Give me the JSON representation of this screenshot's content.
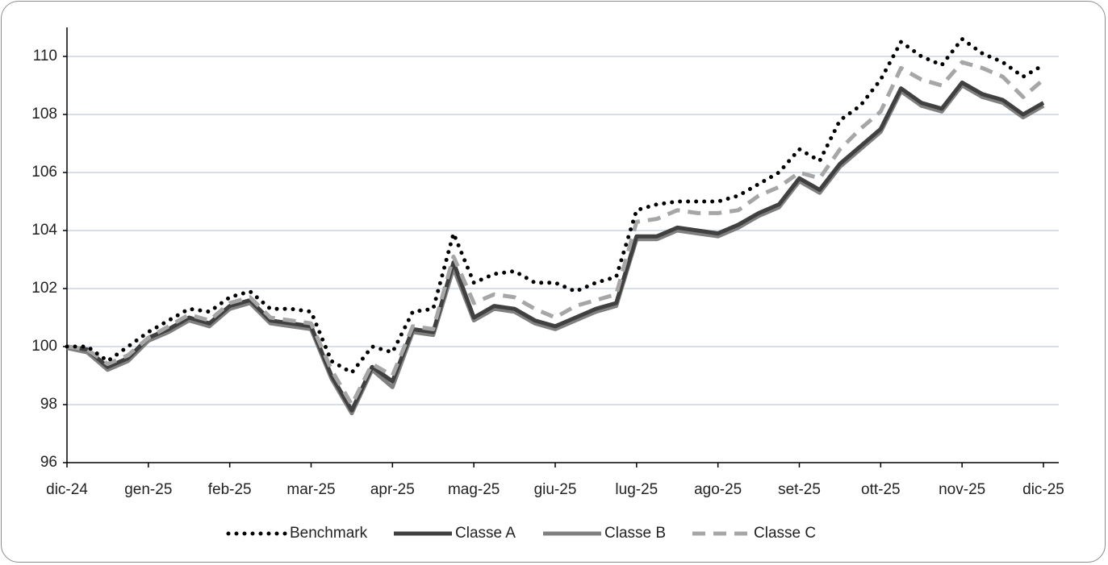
{
  "chart_data": {
    "type": "line",
    "categories": [
      "dic-24",
      null,
      null,
      null,
      "gen-25",
      null,
      null,
      null,
      "feb-25",
      null,
      null,
      null,
      "mar-25",
      null,
      null,
      null,
      "apr-25",
      null,
      null,
      null,
      "mag-25",
      null,
      null,
      null,
      "giu-25",
      null,
      null,
      null,
      "lug-25",
      null,
      null,
      null,
      "ago-25",
      null,
      null,
      null,
      "set-25",
      null,
      null,
      null,
      "ott-25",
      null,
      null,
      null,
      "nov-25",
      null,
      null,
      null,
      "dic-25"
    ],
    "series": [
      {
        "name": "Benchmark",
        "color": "#000000",
        "style": "dotted",
        "values": [
          100.0,
          100.0,
          99.5,
          100.0,
          100.5,
          100.9,
          101.3,
          101.2,
          101.7,
          101.9,
          101.3,
          101.3,
          101.2,
          99.5,
          99.1,
          100.0,
          99.8,
          101.2,
          101.3,
          103.9,
          102.2,
          102.5,
          102.6,
          102.2,
          102.2,
          101.9,
          102.2,
          102.4,
          104.7,
          104.9,
          105.0,
          105.0,
          105.0,
          105.2,
          105.6,
          106.0,
          106.8,
          106.4,
          107.8,
          108.3,
          109.2,
          110.5,
          110.0,
          109.7,
          110.6,
          110.1,
          109.8,
          109.3,
          109.7
        ]
      },
      {
        "name": "Classe A",
        "color": "#404040",
        "style": "solid",
        "values": [
          100.0,
          99.9,
          99.3,
          99.6,
          100.3,
          100.6,
          101.0,
          100.8,
          101.4,
          101.6,
          100.9,
          100.8,
          100.7,
          99.0,
          97.8,
          99.3,
          98.8,
          100.6,
          100.5,
          102.9,
          101.0,
          101.4,
          101.3,
          100.9,
          100.7,
          101.0,
          101.3,
          101.5,
          103.8,
          103.8,
          104.1,
          104.0,
          103.9,
          104.2,
          104.6,
          104.9,
          105.8,
          105.4,
          106.3,
          106.9,
          107.5,
          108.9,
          108.4,
          108.2,
          109.1,
          108.7,
          108.5,
          108.0,
          108.4
        ]
      },
      {
        "name": "Classe B",
        "color": "#808080",
        "style": "solid",
        "values": [
          99.95,
          99.8,
          99.2,
          99.5,
          100.2,
          100.5,
          100.9,
          100.7,
          101.3,
          101.5,
          100.8,
          100.7,
          100.6,
          98.9,
          97.7,
          99.2,
          98.6,
          100.5,
          100.4,
          102.7,
          100.9,
          101.3,
          101.2,
          100.8,
          100.6,
          100.9,
          101.2,
          101.4,
          103.7,
          103.7,
          104.0,
          103.9,
          103.8,
          104.1,
          104.5,
          104.8,
          105.7,
          105.3,
          106.2,
          106.8,
          107.4,
          108.8,
          108.3,
          108.1,
          109.0,
          108.6,
          108.4,
          107.9,
          108.3
        ]
      },
      {
        "name": "Classe C",
        "color": "#a6a6a6",
        "style": "dashed",
        "values": [
          100.0,
          99.9,
          99.4,
          99.7,
          100.3,
          100.7,
          101.1,
          100.9,
          101.5,
          101.7,
          101.0,
          100.9,
          100.8,
          99.2,
          98.0,
          99.4,
          99.0,
          100.7,
          100.6,
          103.1,
          101.5,
          101.8,
          101.7,
          101.3,
          101.0,
          101.4,
          101.6,
          101.8,
          104.3,
          104.4,
          104.7,
          104.6,
          104.6,
          104.7,
          105.2,
          105.5,
          106.0,
          105.8,
          106.8,
          107.5,
          108.1,
          109.6,
          109.2,
          109.0,
          109.8,
          109.6,
          109.3,
          108.6,
          109.2
        ]
      }
    ],
    "ylim": [
      96,
      111
    ],
    "yticks": [
      96,
      98,
      100,
      102,
      104,
      106,
      108,
      110
    ],
    "grid": true,
    "legend": "bottom"
  }
}
